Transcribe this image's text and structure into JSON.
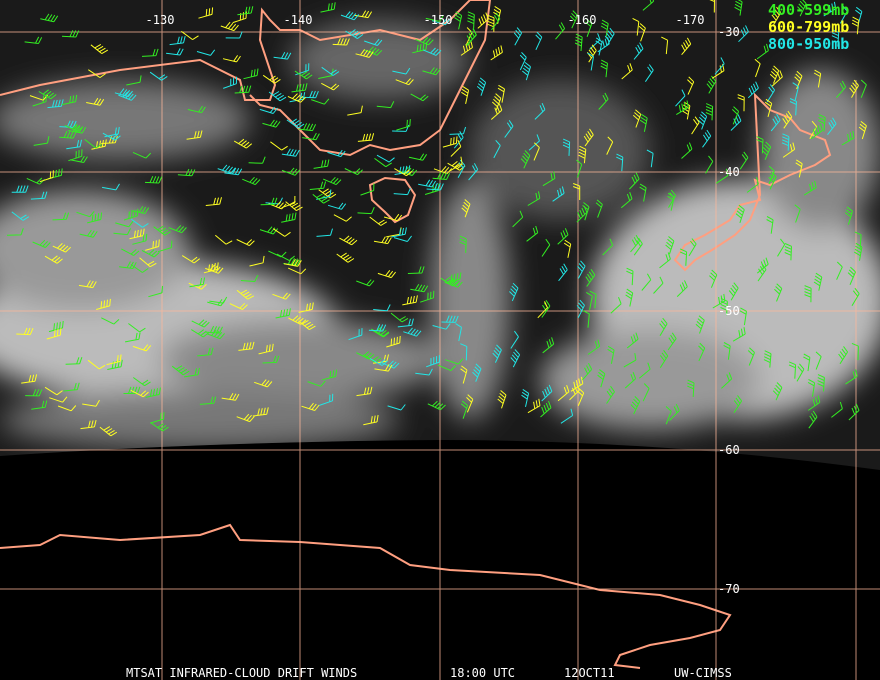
{
  "map": {
    "longitude_labels": [
      "-130",
      "-140",
      "-150",
      "-160",
      "-170"
    ],
    "latitude_labels": [
      "-30",
      "-40",
      "-50",
      "-60",
      "-70"
    ],
    "legend": [
      {
        "label": "400-599mb",
        "color": "#33ee22"
      },
      {
        "label": "600-799mb",
        "color": "#ffff22"
      },
      {
        "label": "800-950mb",
        "color": "#22e6e6"
      }
    ],
    "footer": [
      "MTSAT INFRARED-CLOUD DRIFT WINDS",
      "18:00 UTC",
      "12OCT11",
      "UW-CIMSS"
    ]
  }
}
